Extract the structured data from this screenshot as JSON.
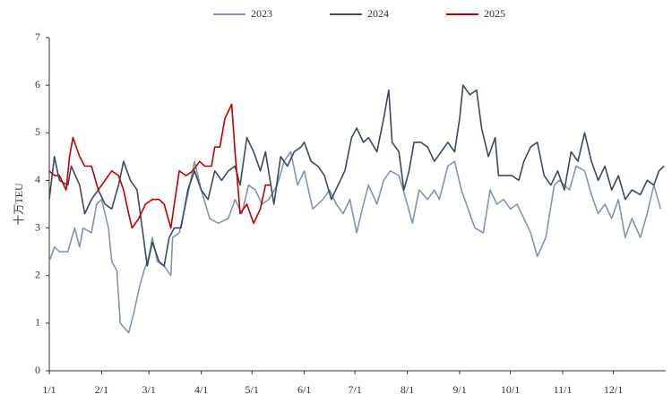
{
  "chart_data": {
    "type": "line",
    "y_label": "十万TEU",
    "xlim": [
      0,
      365
    ],
    "ylim": [
      0,
      7
    ],
    "yticks": [
      0,
      1,
      2,
      3,
      4,
      5,
      6,
      7
    ],
    "xticks": [
      {
        "value": 0,
        "label": "1/1"
      },
      {
        "value": 31,
        "label": "2/1"
      },
      {
        "value": 59,
        "label": "3/1"
      },
      {
        "value": 90,
        "label": "4/1"
      },
      {
        "value": 120,
        "label": "5/1"
      },
      {
        "value": 151,
        "label": "6/1"
      },
      {
        "value": 181,
        "label": "7/1"
      },
      {
        "value": 212,
        "label": "8/1"
      },
      {
        "value": 243,
        "label": "9/1"
      },
      {
        "value": 273,
        "label": "10/1"
      },
      {
        "value": 304,
        "label": "11/1"
      },
      {
        "value": 334,
        "label": "12/1"
      }
    ],
    "grid": false,
    "legend": "top",
    "series": [
      {
        "name": "2023",
        "color": "#8295ae",
        "x": [
          0,
          3,
          6,
          11,
          15,
          18,
          20,
          25,
          28,
          31,
          35,
          37,
          40,
          42,
          47,
          50,
          53,
          56,
          59,
          61,
          64,
          68,
          72,
          73,
          77,
          82,
          86,
          90,
          95,
          100,
          106,
          110,
          114,
          118,
          122,
          126,
          130,
          135,
          139,
          143,
          147,
          151,
          156,
          162,
          166,
          170,
          174,
          178,
          182,
          186,
          189,
          194,
          198,
          202,
          207,
          212,
          215,
          219,
          224,
          228,
          231,
          236,
          240,
          244,
          248,
          252,
          257,
          261,
          265,
          269,
          273,
          277,
          281,
          285,
          289,
          294,
          299,
          302,
          308,
          312,
          317,
          321,
          325,
          329,
          333,
          337,
          341,
          345,
          350,
          354,
          358,
          362
        ],
        "values": [
          2.3,
          2.6,
          2.5,
          2.5,
          3.0,
          2.6,
          3.0,
          2.9,
          3.5,
          3.6,
          3.0,
          2.3,
          2.1,
          1.0,
          0.8,
          1.2,
          1.7,
          2.1,
          2.4,
          2.8,
          2.3,
          2.2,
          2.0,
          2.8,
          2.9,
          3.7,
          4.4,
          3.8,
          3.2,
          3.1,
          3.2,
          3.6,
          3.3,
          3.9,
          3.8,
          3.5,
          3.6,
          3.9,
          4.4,
          4.6,
          3.9,
          4.2,
          3.4,
          3.6,
          3.8,
          3.5,
          3.3,
          3.6,
          2.9,
          3.5,
          3.9,
          3.5,
          4.0,
          4.2,
          4.1,
          3.5,
          3.1,
          3.8,
          3.6,
          3.8,
          3.6,
          4.3,
          4.4,
          3.8,
          3.4,
          3.0,
          2.9,
          3.8,
          3.5,
          3.6,
          3.4,
          3.5,
          3.2,
          2.9,
          2.4,
          2.8,
          3.9,
          4.0,
          3.8,
          4.3,
          4.2,
          3.7,
          3.3,
          3.5,
          3.2,
          3.6,
          2.8,
          3.2,
          2.8,
          3.3,
          3.9,
          3.4
        ]
      },
      {
        "name": "2024",
        "color": "#3b4a5f",
        "x": [
          0,
          3,
          6,
          11,
          13,
          18,
          21,
          25,
          29,
          33,
          37,
          41,
          44,
          48,
          52,
          55,
          58,
          61,
          65,
          68,
          71,
          74,
          78,
          82,
          86,
          90,
          94,
          98,
          102,
          106,
          110,
          113,
          117,
          121,
          125,
          128,
          133,
          137,
          141,
          145,
          149,
          151,
          155,
          159,
          163,
          167,
          171,
          175,
          179,
          182,
          186,
          189,
          194,
          198,
          201,
          203,
          207,
          210,
          213,
          216,
          220,
          224,
          228,
          232,
          236,
          240,
          243,
          245,
          249,
          253,
          256,
          260,
          264,
          266,
          270,
          274,
          278,
          281,
          285,
          289,
          293,
          297,
          301,
          305,
          309,
          313,
          317,
          321,
          325,
          329,
          333,
          337,
          341,
          345,
          350,
          354,
          358,
          361,
          364
        ],
        "values": [
          3.6,
          4.5,
          4.0,
          3.9,
          4.3,
          3.9,
          3.3,
          3.6,
          3.8,
          3.5,
          3.4,
          3.9,
          4.4,
          4.0,
          3.8,
          3.0,
          2.2,
          2.7,
          2.3,
          2.2,
          2.8,
          3.0,
          3.0,
          3.8,
          4.2,
          3.8,
          3.6,
          4.2,
          4.0,
          4.2,
          4.3,
          3.9,
          4.9,
          4.6,
          4.2,
          4.6,
          3.5,
          4.5,
          4.3,
          4.6,
          4.7,
          4.8,
          4.4,
          4.3,
          4.1,
          3.6,
          3.9,
          4.2,
          4.9,
          5.1,
          4.8,
          4.9,
          4.6,
          5.3,
          5.9,
          4.8,
          4.6,
          3.8,
          4.2,
          4.8,
          4.8,
          4.7,
          4.4,
          4.6,
          4.8,
          4.6,
          5.3,
          6.0,
          5.8,
          5.9,
          5.1,
          4.5,
          4.9,
          4.1,
          4.1,
          4.1,
          4.0,
          4.4,
          4.7,
          4.8,
          4.1,
          3.9,
          4.2,
          3.8,
          4.6,
          4.4,
          5.0,
          4.4,
          4.0,
          4.3,
          3.8,
          4.1,
          3.6,
          3.8,
          3.7,
          4.0,
          3.9,
          4.2,
          4.3
        ]
      },
      {
        "name": "2025",
        "color": "#c00000",
        "x": [
          0,
          3,
          6,
          10,
          12,
          14,
          18,
          21,
          25,
          29,
          33,
          37,
          41,
          44,
          47,
          49,
          53,
          57,
          61,
          65,
          68,
          72,
          74,
          77,
          81,
          85,
          89,
          92,
          96,
          98,
          101,
          104,
          108,
          110,
          113,
          117,
          121,
          125,
          128,
          131
        ],
        "values": [
          4.2,
          4.1,
          4.1,
          3.8,
          4.5,
          4.9,
          4.5,
          4.3,
          4.3,
          3.8,
          4.0,
          4.2,
          4.1,
          3.8,
          3.3,
          3.0,
          3.2,
          3.5,
          3.6,
          3.6,
          3.5,
          3.0,
          3.5,
          4.2,
          4.1,
          4.2,
          4.4,
          4.3,
          4.3,
          4.7,
          4.7,
          5.3,
          5.6,
          4.6,
          3.3,
          3.5,
          3.1,
          3.4,
          3.9,
          3.9
        ]
      }
    ]
  }
}
